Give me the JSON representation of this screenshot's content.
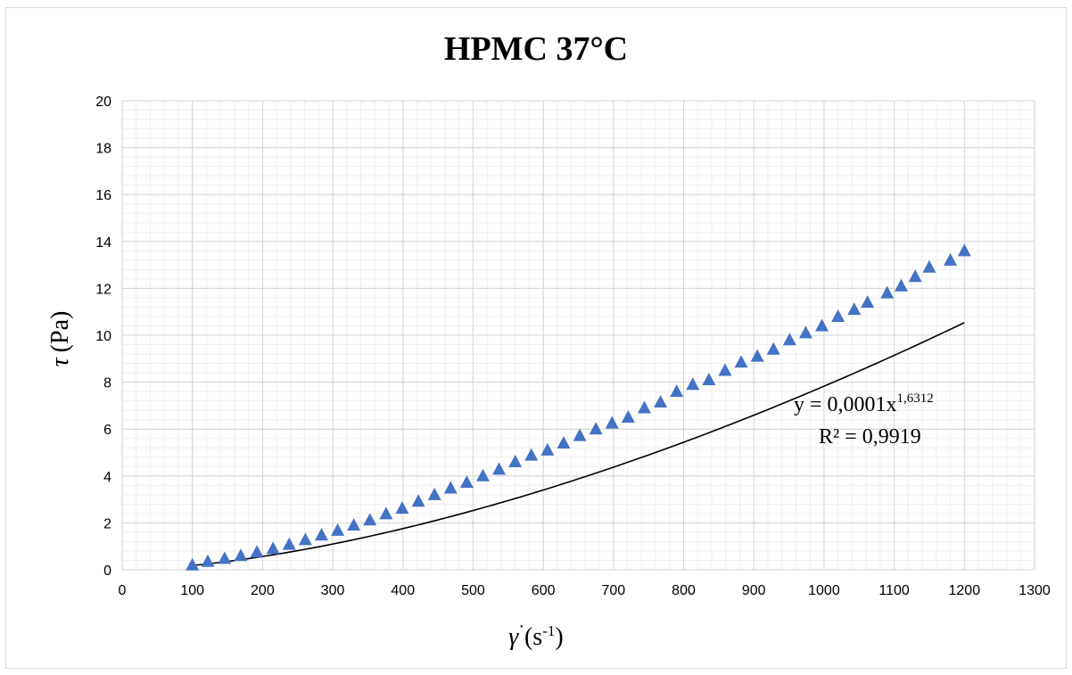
{
  "chart_data": {
    "type": "scatter",
    "title": "HPMC 37°C",
    "xlabel": {
      "symbol": "γ",
      "dot": "·",
      "unit_open": "(s",
      "unit_exp": "-1",
      "unit_close": ")"
    },
    "ylabel": {
      "symbol": "τ",
      "unit": "(Pa)"
    },
    "xlim": [
      0,
      1300
    ],
    "ylim": [
      0,
      20
    ],
    "x_ticks": [
      0,
      100,
      200,
      300,
      400,
      500,
      600,
      700,
      800,
      900,
      1000,
      1100,
      1200,
      1300
    ],
    "y_ticks": [
      0,
      2,
      4,
      6,
      8,
      10,
      12,
      14,
      16,
      18,
      20
    ],
    "grid": {
      "major": true,
      "minor": true
    },
    "marker": {
      "shape": "triangle",
      "color": "#4472c4"
    },
    "series": [
      {
        "x": [
          100,
          122,
          146,
          169,
          192,
          215,
          238,
          261,
          284,
          307,
          330,
          353,
          376,
          399,
          422,
          445,
          468,
          491,
          514,
          537,
          560,
          583,
          606,
          629,
          652,
          675,
          698,
          721,
          744,
          767,
          790,
          813,
          836,
          859,
          882,
          905,
          928,
          951,
          974,
          997,
          1020,
          1043,
          1062,
          1090,
          1110,
          1130,
          1150,
          1180,
          1200
        ],
        "y": [
          0.2,
          0.35,
          0.48,
          0.6,
          0.75,
          0.9,
          1.08,
          1.28,
          1.48,
          1.68,
          1.9,
          2.12,
          2.38,
          2.62,
          2.92,
          3.2,
          3.48,
          3.72,
          4.0,
          4.28,
          4.6,
          4.88,
          5.1,
          5.4,
          5.72,
          6.0,
          6.25,
          6.5,
          6.9,
          7.15,
          7.6,
          7.9,
          8.1,
          8.5,
          8.85,
          9.1,
          9.4,
          9.8,
          10.1,
          10.4,
          10.8,
          11.1,
          11.4,
          11.8,
          12.1,
          12.5,
          12.9,
          13.2,
          13.6
        ]
      }
    ],
    "trendline": {
      "type": "power",
      "a": 0.0001,
      "b": 1.6312,
      "x_range": [
        100,
        1200
      ],
      "color": "#000000"
    },
    "equation": {
      "text": "y = 0,0001x",
      "exponent": "1,6312",
      "r2": "R² = 0,9919"
    }
  }
}
